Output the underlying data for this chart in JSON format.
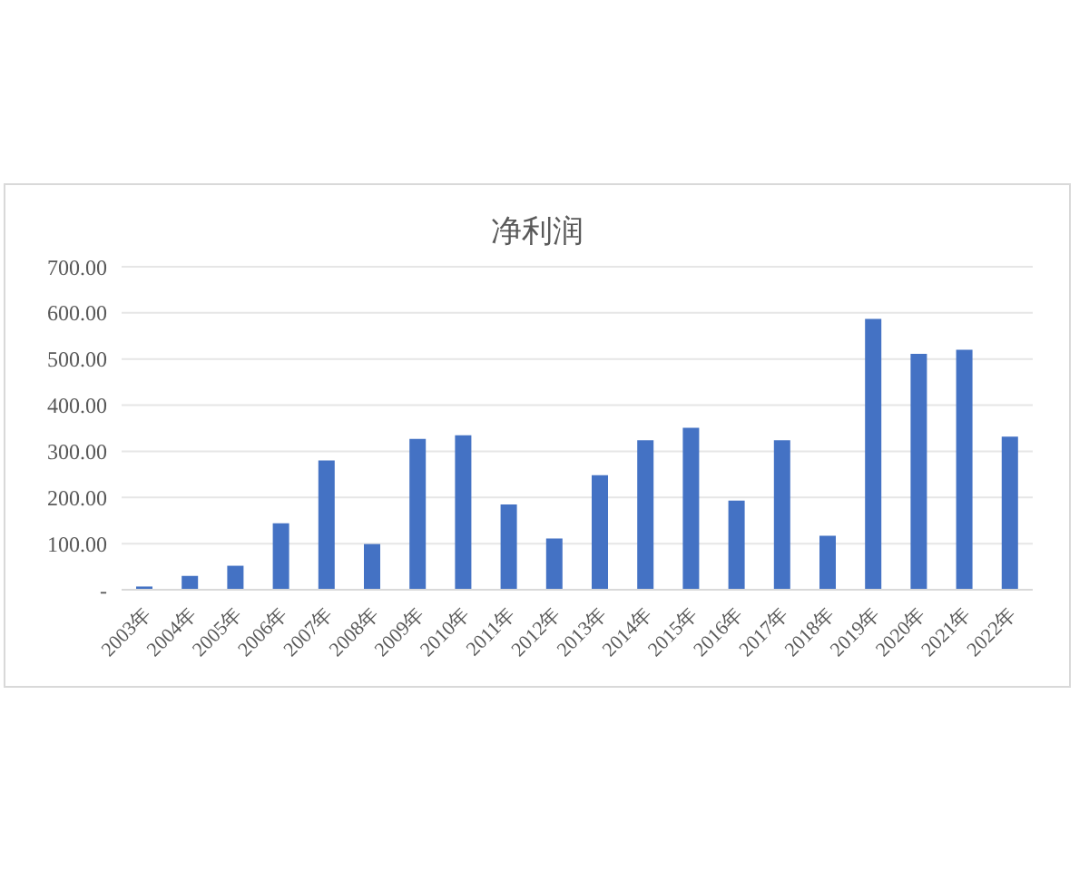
{
  "chart_data": {
    "type": "bar",
    "title": "净利润",
    "categories": [
      "2003年",
      "2004年",
      "2005年",
      "2006年",
      "2007年",
      "2008年",
      "2009年",
      "2010年",
      "2011年",
      "2012年",
      "2013年",
      "2014年",
      "2015年",
      "2016年",
      "2017年",
      "2018年",
      "2019年",
      "2020年",
      "2021年",
      "2022年"
    ],
    "values": [
      7,
      30,
      52,
      144,
      280,
      99,
      327,
      335,
      185,
      111,
      248,
      324,
      351,
      193,
      324,
      117,
      587,
      511,
      520,
      332
    ],
    "color": "#4472c4",
    "ylim": [
      0,
      700
    ],
    "yticks": [
      {
        "value": 0,
        "label": "-"
      },
      {
        "value": 100,
        "label": "100.00"
      },
      {
        "value": 200,
        "label": "200.00"
      },
      {
        "value": 300,
        "label": "300.00"
      },
      {
        "value": 400,
        "label": "400.00"
      },
      {
        "value": 500,
        "label": "500.00"
      },
      {
        "value": 600,
        "label": "600.00"
      },
      {
        "value": 700,
        "label": "700.00"
      }
    ],
    "grid": "y"
  }
}
